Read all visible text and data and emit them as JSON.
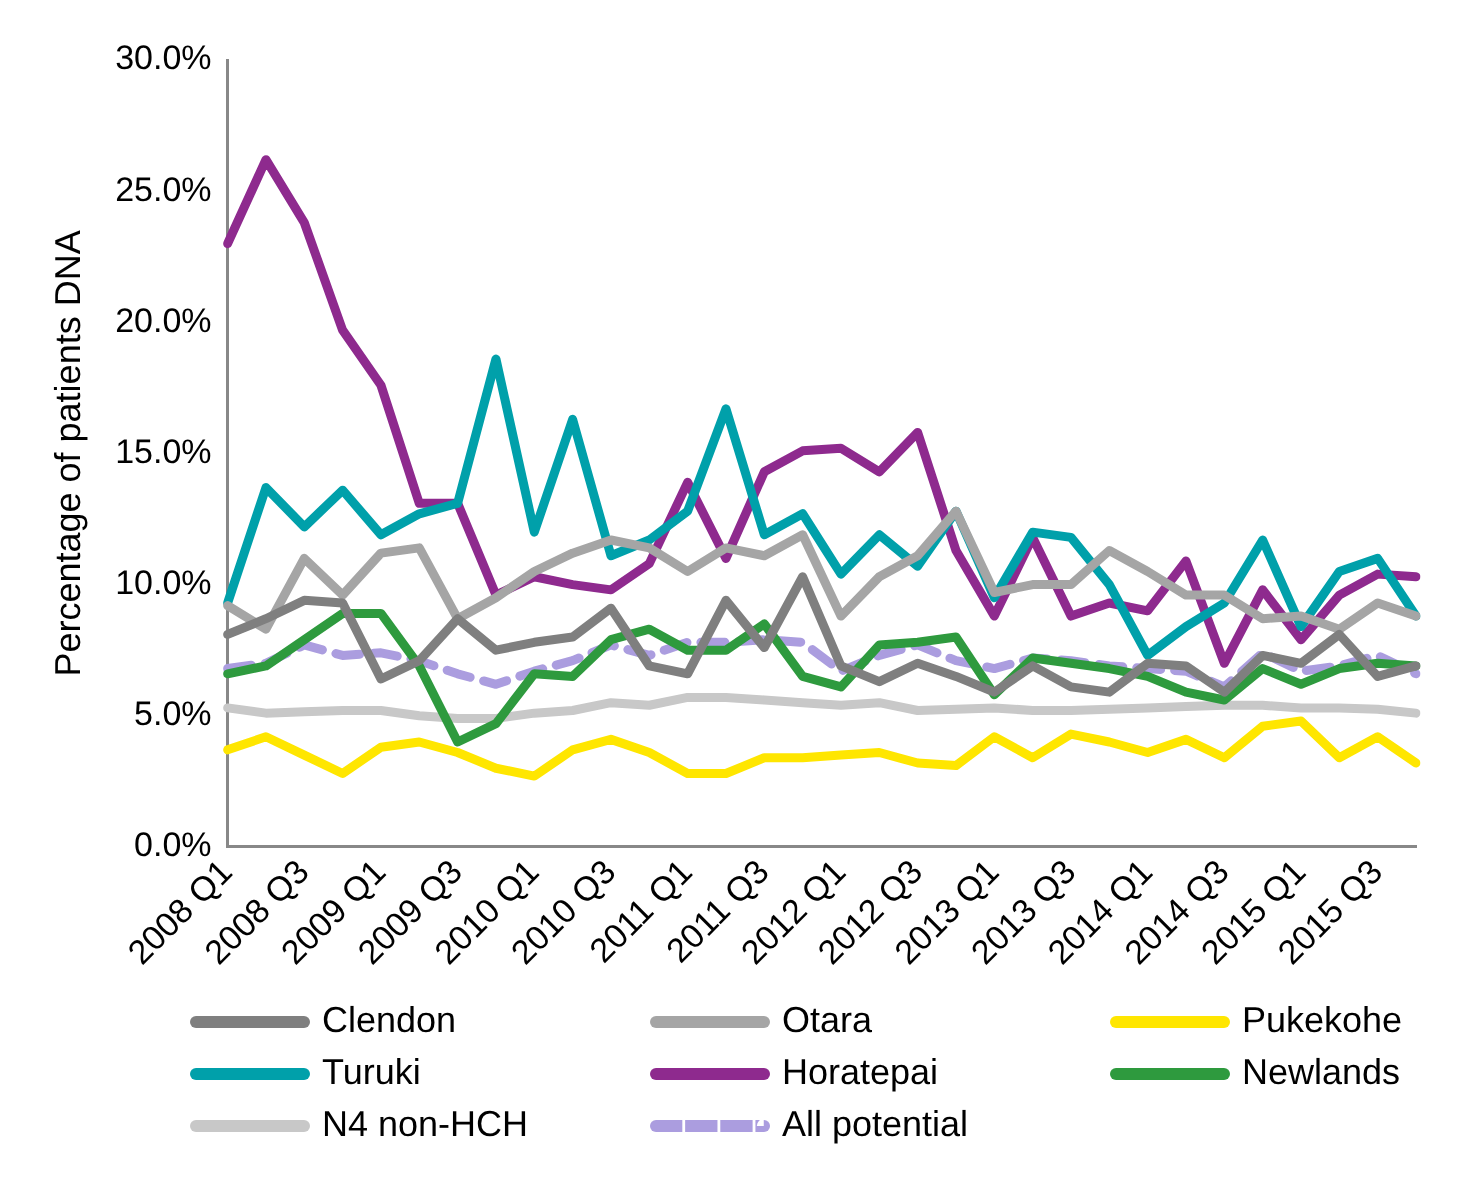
{
  "chart_data": {
    "type": "line",
    "ylabel": "Percentage of patients DNA",
    "categories": [
      "2008 Q1",
      null,
      "2008 Q3",
      null,
      "2009 Q1",
      null,
      "2009 Q3",
      null,
      "2010 Q1",
      null,
      "2010 Q3",
      null,
      "2011 Q1",
      null,
      "2011 Q3",
      null,
      "2012 Q1",
      null,
      "2012 Q3",
      null,
      "2013 Q1",
      null,
      "2013 Q3",
      null,
      "2014 Q1",
      null,
      "2014 Q3",
      null,
      "2015 Q1",
      null,
      "2015 Q3",
      null
    ],
    "ylim": [
      0,
      30
    ],
    "yticks": [
      {
        "value": 0,
        "label": "0.0%"
      },
      {
        "value": 5,
        "label": "5.0%"
      },
      {
        "value": 10,
        "label": "10.0%"
      },
      {
        "value": 15,
        "label": "15.0%"
      },
      {
        "value": 20,
        "label": "20.0%"
      },
      {
        "value": 25,
        "label": "25.0%"
      },
      {
        "value": 30,
        "label": "30.0%"
      }
    ],
    "grid": false,
    "legend": "bottom",
    "marker": "none",
    "series": [
      {
        "name": "Clendon",
        "color": "#7f7f7f",
        "values": [
          8.1,
          8.7,
          9.4,
          9.3,
          6.4,
          7.1,
          8.7,
          7.5,
          7.8,
          8.0,
          9.1,
          6.9,
          6.6,
          9.4,
          7.6,
          10.3,
          6.9,
          6.3,
          7.0,
          6.5,
          5.9,
          6.9,
          6.1,
          5.9,
          7.0,
          6.9,
          5.9,
          7.3,
          7.0,
          8.1,
          6.5,
          6.9
        ]
      },
      {
        "name": "Otara",
        "color": "#a5a5a5",
        "values": [
          9.2,
          8.3,
          11.0,
          9.6,
          11.2,
          11.4,
          8.7,
          9.5,
          10.5,
          11.2,
          11.7,
          11.4,
          10.5,
          11.4,
          11.1,
          11.9,
          8.8,
          10.3,
          11.1,
          12.8,
          9.7,
          10.0,
          10.0,
          11.3,
          10.5,
          9.6,
          9.6,
          8.7,
          8.8,
          8.3,
          9.3,
          8.8
        ]
      },
      {
        "name": "Pukekohe",
        "color": "#ffe600",
        "values": [
          3.7,
          4.2,
          3.5,
          2.8,
          3.8,
          4.0,
          3.6,
          3.0,
          2.7,
          3.7,
          4.1,
          3.6,
          2.8,
          2.8,
          3.4,
          3.4,
          3.5,
          3.6,
          3.2,
          3.1,
          4.2,
          3.4,
          4.3,
          4.0,
          3.6,
          4.1,
          3.4,
          4.6,
          4.8,
          3.4,
          4.2,
          3.2
        ]
      },
      {
        "name": "Turuki",
        "color": "#00a0aa",
        "values": [
          9.3,
          13.7,
          12.2,
          13.6,
          11.9,
          12.7,
          13.1,
          18.6,
          12.0,
          16.3,
          11.1,
          11.7,
          12.8,
          16.7,
          11.9,
          12.7,
          10.4,
          11.9,
          10.7,
          12.8,
          9.5,
          12.0,
          11.8,
          10.0,
          7.3,
          8.4,
          9.3,
          11.7,
          8.4,
          10.5,
          11.0,
          8.8
        ]
      },
      {
        "name": "Horatepai",
        "color": "#8e2a8e",
        "values": [
          23.0,
          26.2,
          23.8,
          19.7,
          17.6,
          13.1,
          13.1,
          9.6,
          10.3,
          10.0,
          9.8,
          10.8,
          13.9,
          11.0,
          14.3,
          15.1,
          15.2,
          14.3,
          15.8,
          11.3,
          8.8,
          11.8,
          8.8,
          9.3,
          9.0,
          10.9,
          7.0,
          9.8,
          7.9,
          9.6,
          10.4,
          10.3
        ]
      },
      {
        "name": "Newlands",
        "color": "#2e9a3e",
        "values": [
          6.6,
          6.9,
          7.9,
          8.9,
          8.9,
          6.9,
          4.0,
          4.7,
          6.6,
          6.5,
          7.9,
          8.3,
          7.5,
          7.5,
          8.5,
          6.5,
          6.1,
          7.7,
          7.8,
          8.0,
          5.8,
          7.2,
          7.0,
          6.8,
          6.5,
          5.9,
          5.6,
          6.8,
          6.2,
          6.8,
          7.0,
          6.9
        ]
      },
      {
        "name": "N4 non-HCH",
        "color": "#c8c8c8",
        "values": [
          5.3,
          5.1,
          5.15,
          5.2,
          5.2,
          5.0,
          4.9,
          4.9,
          5.1,
          5.2,
          5.5,
          5.4,
          5.7,
          5.7,
          5.6,
          5.5,
          5.4,
          5.5,
          5.2,
          5.25,
          5.3,
          5.2,
          5.2,
          5.25,
          5.3,
          5.35,
          5.4,
          5.4,
          5.3,
          5.3,
          5.25,
          5.1
        ]
      },
      {
        "name": "All potential",
        "color": "#ab9ddf",
        "line_style": "dashed",
        "values": [
          6.8,
          7.0,
          7.7,
          7.3,
          7.4,
          7.1,
          6.6,
          6.2,
          6.7,
          7.1,
          7.7,
          7.3,
          7.8,
          7.8,
          7.9,
          7.8,
          6.7,
          7.3,
          7.7,
          7.1,
          6.8,
          7.2,
          7.1,
          6.9,
          6.8,
          6.7,
          6.1,
          7.4,
          6.7,
          6.9,
          7.3,
          6.6
        ]
      }
    ]
  }
}
